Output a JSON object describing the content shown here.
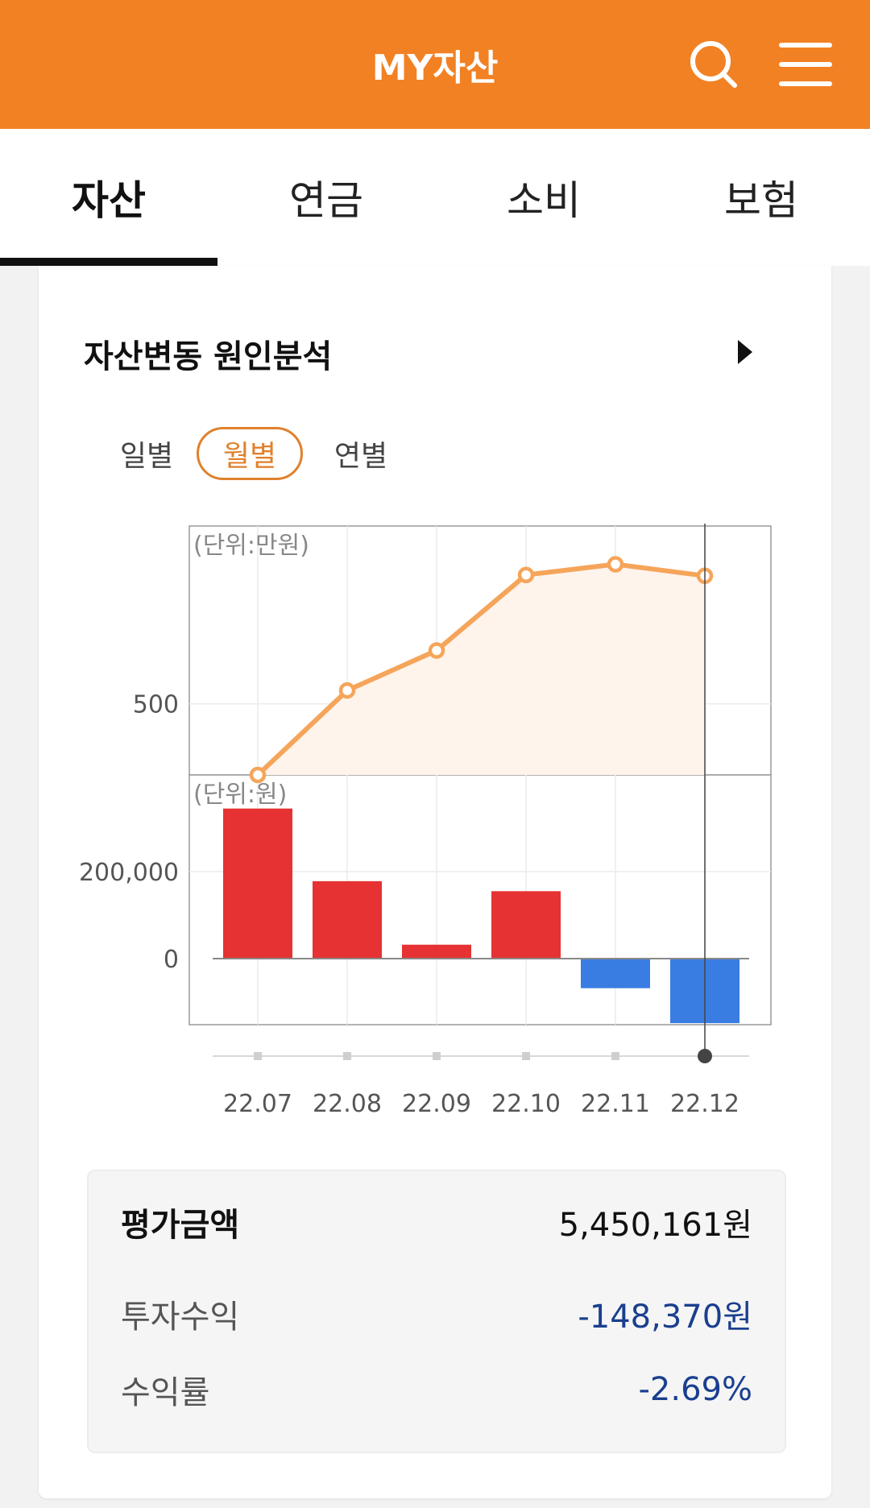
{
  "header": {
    "title": "MY자산",
    "search_icon": "search-icon",
    "menu_icon": "menu-icon"
  },
  "tabs": [
    {
      "label": "자산",
      "active": true
    },
    {
      "label": "연금",
      "active": false
    },
    {
      "label": "소비",
      "active": false
    },
    {
      "label": "보험",
      "active": false
    }
  ],
  "card": {
    "title": "자산변동 원인분석",
    "periods": [
      {
        "label": "일별",
        "active": false
      },
      {
        "label": "월별",
        "active": true
      },
      {
        "label": "연별",
        "active": false
      }
    ]
  },
  "chart_data": [
    {
      "type": "area",
      "unit_label": "(단위:만원)",
      "x": [
        "22.07",
        "22.08",
        "22.09",
        "22.10",
        "22.11",
        "22.12"
      ],
      "values": [
        420,
        515,
        560,
        645,
        657,
        644
      ],
      "ytick_labels": [
        "500"
      ],
      "yticks": [
        500
      ],
      "ylim": [
        420,
        700
      ],
      "color": "#f5a55a",
      "fill": "#fff4ec"
    },
    {
      "type": "bar",
      "unit_label": "(단위:원)",
      "x": [
        "22.07",
        "22.08",
        "22.09",
        "22.10",
        "22.11",
        "22.12"
      ],
      "values": [
        345000,
        178000,
        32000,
        155000,
        -68000,
        -148370
      ],
      "ytick_labels": [
        "200,000",
        "0"
      ],
      "yticks": [
        200000,
        0
      ],
      "ylim": [
        -150000,
        360000
      ],
      "positive_color": "#e63232",
      "negative_color": "#3a7de2"
    }
  ],
  "x_tick_labels": [
    "22.07",
    "22.08",
    "22.09",
    "22.10",
    "22.11",
    "22.12"
  ],
  "selected_index": 5,
  "summary": {
    "eval_label": "평가금액",
    "eval_value": "5,450,161원",
    "profit_label": "투자수익",
    "profit_value": "-148,370원",
    "rate_label": "수익률",
    "rate_value": "-2.69%"
  }
}
